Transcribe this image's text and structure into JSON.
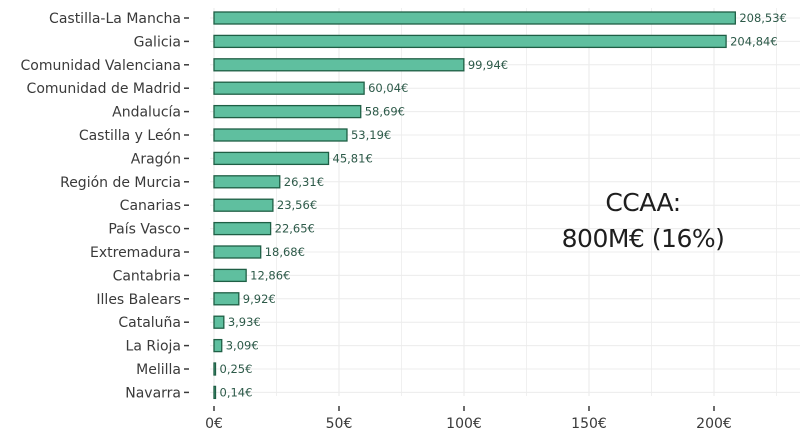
{
  "chart_data": {
    "type": "bar",
    "orientation": "horizontal",
    "categories": [
      "Castilla-La Mancha",
      "Galicia",
      "Comunidad Valenciana",
      "Comunidad de Madrid",
      "Andalucía",
      "Castilla y León",
      "Aragón",
      "Región de Murcia",
      "Canarias",
      "País Vasco",
      "Extremadura",
      "Cantabria",
      "Illes Balears",
      "Cataluña",
      "La Rioja",
      "Melilla",
      "Navarra"
    ],
    "values": [
      208.53,
      204.84,
      99.94,
      60.04,
      58.69,
      53.19,
      45.81,
      26.31,
      23.56,
      22.65,
      18.68,
      12.86,
      9.92,
      3.93,
      3.09,
      0.25,
      0.14
    ],
    "value_labels": [
      "208,53€",
      "204,84€",
      "99,94€",
      "60,04€",
      "58,69€",
      "53,19€",
      "45,81€",
      "26,31€",
      "23,56€",
      "22,65€",
      "18,68€",
      "12,86€",
      "9,92€",
      "3,93€",
      "3,09€",
      "0,25€",
      "0,14€"
    ],
    "xticks": [
      0,
      50,
      100,
      150,
      200
    ],
    "xtick_labels": [
      "0€",
      "50€",
      "100€",
      "150€",
      "200€"
    ],
    "xlim": [
      0,
      230
    ],
    "grid": true,
    "bar_color": "#5fbf9f",
    "bar_edge_color": "#1f5f45",
    "grid_color": "#ececec",
    "annotation": [
      "CCAA:",
      "800M€ (16%)"
    ]
  }
}
